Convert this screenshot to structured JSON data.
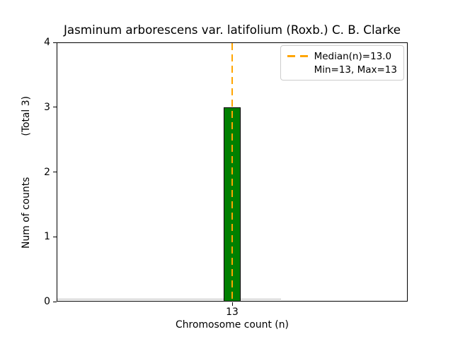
{
  "figure": {
    "background": "#ffffff"
  },
  "chart_data": {
    "type": "bar",
    "title": "Jasminum arborescens var. latifolium (Roxb.) C. B. Clarke",
    "xlabel": "Chromosome count (n)",
    "ylabel": "Num of counts",
    "ylabel_note": "(Total 3)",
    "categories": [
      "13"
    ],
    "values": [
      3
    ],
    "total": 3,
    "ylim": [
      0,
      4
    ],
    "yticks": [
      0,
      1,
      2,
      3,
      4
    ],
    "xticks": [
      "13"
    ],
    "grid": false,
    "bar_color": "#008000",
    "bar_edge_color": "#000000",
    "median": 13.0,
    "min": 13,
    "max": 13,
    "median_line_color": "#FFA500",
    "legend_position": "upper right"
  },
  "legend": {
    "lines": [
      "Median(n)=13.0",
      "Min=13, Max=13"
    ]
  }
}
